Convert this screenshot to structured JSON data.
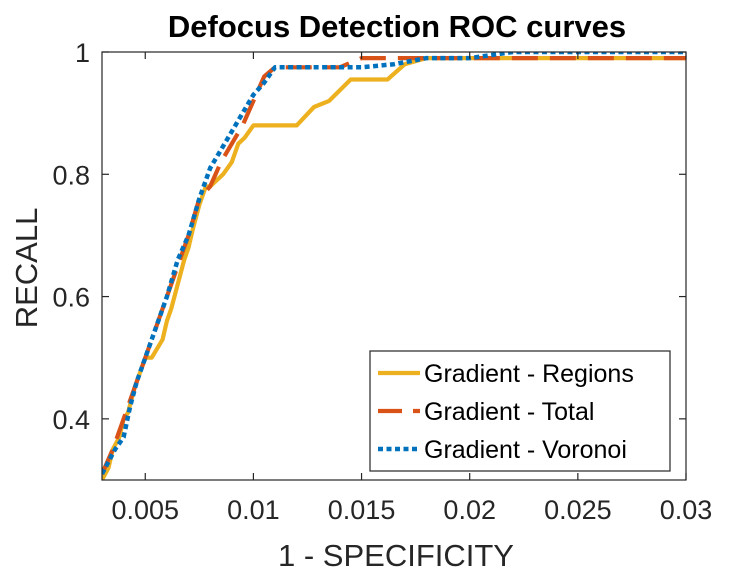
{
  "chart_data": {
    "type": "line",
    "title": "Defocus Detection ROC curves",
    "xlabel": "1 - SPECIFICITY",
    "ylabel": "RECALL",
    "xlim": [
      0.003,
      0.03
    ],
    "ylim": [
      0.3,
      1.0
    ],
    "xticks": [
      0.005,
      0.01,
      0.015,
      0.02,
      0.025,
      0.03
    ],
    "xtick_labels": [
      "0.005",
      "0.01",
      "0.015",
      "0.02",
      "0.025",
      "0.03"
    ],
    "yticks": [
      0.4,
      0.6,
      0.8,
      1.0
    ],
    "ytick_labels": [
      "0.4",
      "0.6",
      "0.8",
      "1"
    ],
    "grid": false,
    "legend_position": "bottom-right",
    "series": [
      {
        "name": "Gradient - Regions",
        "color": "#EDB120",
        "style": "solid",
        "x": [
          0.003,
          0.0033,
          0.0035,
          0.0038,
          0.004,
          0.0042,
          0.0045,
          0.005,
          0.0053,
          0.0058,
          0.006,
          0.0062,
          0.0065,
          0.0068,
          0.007,
          0.0072,
          0.0075,
          0.0078,
          0.008,
          0.0083,
          0.0086,
          0.009,
          0.0093,
          0.0096,
          0.01,
          0.0105,
          0.012,
          0.0128,
          0.0135,
          0.0145,
          0.0162,
          0.017,
          0.018,
          0.02,
          0.025,
          0.03
        ],
        "y": [
          0.3,
          0.32,
          0.35,
          0.37,
          0.4,
          0.41,
          0.45,
          0.5,
          0.5,
          0.53,
          0.56,
          0.58,
          0.62,
          0.66,
          0.68,
          0.71,
          0.75,
          0.78,
          0.78,
          0.79,
          0.8,
          0.82,
          0.85,
          0.86,
          0.88,
          0.88,
          0.88,
          0.91,
          0.92,
          0.955,
          0.955,
          0.98,
          0.99,
          0.99,
          0.99,
          0.99
        ]
      },
      {
        "name": "Gradient - Total",
        "color": "#D95319",
        "style": "dashed",
        "x": [
          0.003,
          0.0035,
          0.004,
          0.0045,
          0.005,
          0.0055,
          0.006,
          0.0065,
          0.007,
          0.0075,
          0.008,
          0.0085,
          0.009,
          0.0095,
          0.01,
          0.0105,
          0.011,
          0.012,
          0.013,
          0.014,
          0.015,
          0.016,
          0.018,
          0.02,
          0.025,
          0.03
        ],
        "y": [
          0.31,
          0.35,
          0.4,
          0.45,
          0.5,
          0.55,
          0.6,
          0.65,
          0.7,
          0.76,
          0.78,
          0.82,
          0.85,
          0.88,
          0.92,
          0.96,
          0.975,
          0.975,
          0.975,
          0.975,
          0.99,
          0.99,
          0.99,
          0.99,
          0.99,
          0.99
        ]
      },
      {
        "name": "Gradient - Voronoi",
        "color": "#0072BD",
        "style": "dotted",
        "x": [
          0.003,
          0.0033,
          0.0036,
          0.004,
          0.0043,
          0.0046,
          0.005,
          0.0055,
          0.006,
          0.0065,
          0.007,
          0.0075,
          0.008,
          0.0085,
          0.009,
          0.0095,
          0.01,
          0.0105,
          0.011,
          0.012,
          0.015,
          0.0165,
          0.018,
          0.02,
          0.022,
          0.025,
          0.03
        ],
        "y": [
          0.31,
          0.33,
          0.35,
          0.37,
          0.42,
          0.46,
          0.5,
          0.55,
          0.6,
          0.66,
          0.7,
          0.76,
          0.81,
          0.84,
          0.87,
          0.9,
          0.93,
          0.95,
          0.975,
          0.975,
          0.975,
          0.98,
          0.99,
          0.99,
          1.0,
          1.0,
          1.0
        ]
      }
    ]
  }
}
